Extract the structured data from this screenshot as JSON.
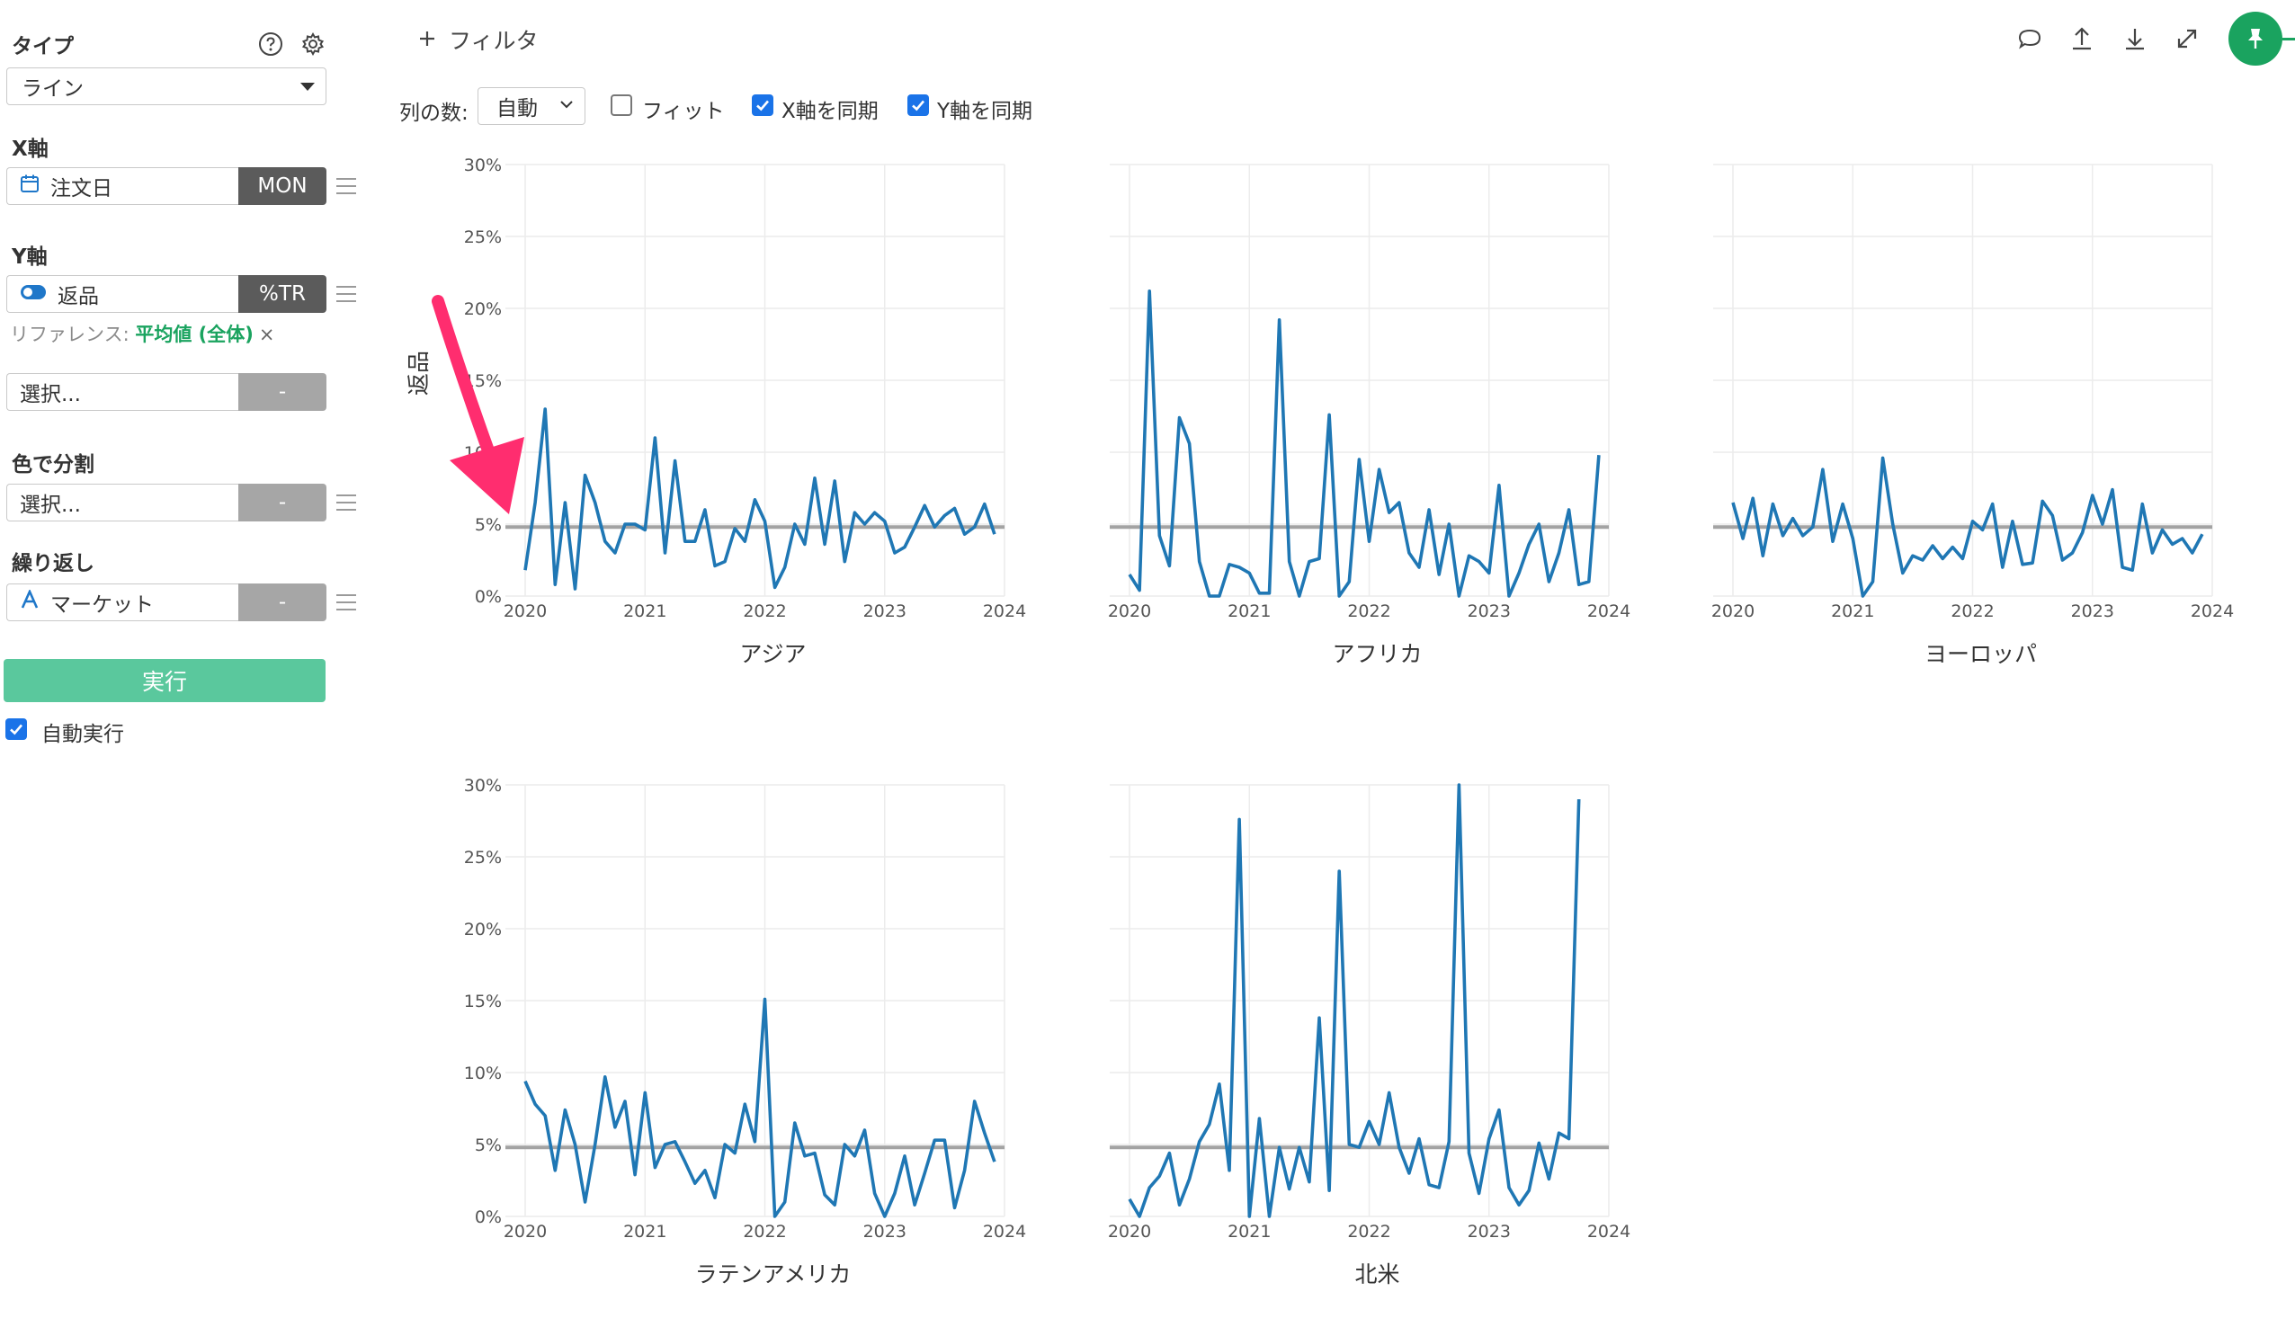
{
  "sidebar": {
    "type_label": "タイプ",
    "type_value": "ライン",
    "x_label": "X軸",
    "x_field": "注文日",
    "x_tag": "MON",
    "y_label": "Y軸",
    "y_field": "返品",
    "y_tag": "%TR",
    "ref_prefix": "リファレンス:",
    "ref_value": "平均値 (全体)",
    "ref_remove": "×",
    "y2_placeholder": "選択...",
    "y2_tag": "-",
    "color_label": "色で分割",
    "color_placeholder": "選択...",
    "color_tag": "-",
    "repeat_label": "繰り返し",
    "repeat_field": "マーケット",
    "repeat_tag": "-",
    "run_label": "実行",
    "auto_run_label": "自動実行",
    "auto_run_checked": true
  },
  "toolbar": {
    "filter_label": "フィルタ",
    "cols_label": "列の数:",
    "cols_value": "自動",
    "fit_label": "フィット",
    "fit_checked": false,
    "sync_x_label": "X軸を同期",
    "sync_x_checked": true,
    "sync_y_label": "Y軸を同期",
    "sync_y_checked": true
  },
  "icons": [
    "help-icon",
    "gear-icon",
    "calendar-icon",
    "toggle-icon",
    "text-type-icon",
    "comment-icon",
    "upload-icon",
    "download-icon",
    "expand-icon",
    "pin-icon"
  ],
  "colors": {
    "line": "#1f77b4",
    "reference": "#a3a3a3",
    "accent": "#1aa35f",
    "run": "#5ac89d",
    "annotation": "#ff2d6f"
  },
  "chart_data": {
    "type": "line",
    "ylabel": "返品",
    "ylim": [
      0,
      30
    ],
    "y_unit": "%",
    "yticks": [
      "0%",
      "5%",
      "10%",
      "15%",
      "20%",
      "25%",
      "30%"
    ],
    "xticks": [
      "2020",
      "2021",
      "2022",
      "2023",
      "2024"
    ],
    "x_start": "2020-01",
    "x_frequency": "monthly",
    "reference_line": {
      "label": "平均値 (全体)",
      "value": 4.8
    },
    "grid": true,
    "panels": [
      {
        "name": "アジア",
        "values": [
          1.8,
          6.5,
          13.0,
          0.8,
          6.5,
          0.5,
          8.4,
          6.5,
          3.8,
          3.0,
          5.0,
          5.0,
          4.6,
          11.0,
          3.0,
          9.4,
          3.8,
          3.8,
          6.0,
          2.1,
          2.4,
          4.7,
          3.8,
          6.7,
          5.2,
          0.6,
          2.0,
          5.0,
          3.6,
          8.2,
          3.6,
          8.0,
          2.4,
          5.8,
          5.0,
          5.8,
          5.2,
          3.0,
          3.4,
          4.8,
          6.3,
          4.8,
          5.6,
          6.1,
          4.3,
          4.8,
          6.4,
          4.3
        ]
      },
      {
        "name": "アフリカ",
        "values": [
          1.5,
          0.4,
          21.2,
          4.2,
          2.1,
          12.4,
          10.6,
          2.4,
          0.0,
          0.0,
          2.2,
          2.0,
          1.6,
          0.2,
          0.2,
          19.2,
          2.4,
          0.0,
          2.4,
          2.6,
          12.6,
          0.0,
          1.0,
          9.5,
          3.8,
          8.8,
          5.8,
          6.5,
          3.0,
          2.0,
          6.0,
          1.5,
          5.0,
          0.0,
          2.8,
          2.4,
          1.6,
          7.7,
          0.0,
          1.6,
          3.6,
          5.0,
          1.0,
          3.0,
          6.0,
          0.8,
          1.0,
          9.8
        ]
      },
      {
        "name": "ヨーロッパ",
        "values": [
          6.5,
          4.0,
          6.8,
          2.8,
          6.4,
          4.2,
          5.4,
          4.2,
          4.8,
          8.8,
          3.8,
          6.4,
          4.0,
          0.0,
          1.0,
          9.6,
          5.0,
          1.6,
          2.8,
          2.5,
          3.5,
          2.6,
          3.4,
          2.6,
          5.2,
          4.6,
          6.4,
          2.0,
          5.2,
          2.2,
          2.3,
          6.6,
          5.6,
          2.5,
          3.0,
          4.4,
          7.0,
          5.0,
          7.4,
          2.0,
          1.8,
          6.4,
          3.0,
          4.6,
          3.6,
          4.0,
          3.0,
          4.3
        ]
      },
      {
        "name": "ラテンアメリカ",
        "values": [
          9.4,
          7.8,
          7.0,
          3.2,
          7.4,
          5.0,
          1.0,
          5.0,
          9.7,
          6.2,
          8.0,
          2.9,
          8.6,
          3.4,
          5.0,
          5.2,
          3.8,
          2.3,
          3.2,
          1.3,
          5.0,
          4.4,
          7.8,
          5.2,
          15.1,
          0.0,
          1.0,
          6.5,
          4.2,
          4.4,
          1.5,
          0.8,
          5.0,
          4.2,
          6.0,
          1.6,
          0.0,
          1.6,
          4.2,
          0.8,
          3.0,
          5.3,
          5.3,
          0.6,
          3.2,
          8.0,
          5.8,
          3.8
        ]
      },
      {
        "name": "北米",
        "values": [
          1.2,
          0.0,
          2.0,
          2.8,
          4.4,
          0.8,
          2.6,
          5.2,
          6.4,
          9.2,
          3.2,
          27.6,
          0.0,
          6.8,
          0.0,
          4.8,
          1.9,
          4.8,
          2.4,
          13.8,
          1.8,
          24.0,
          5.0,
          4.8,
          6.6,
          5.0,
          8.6,
          4.8,
          3.0,
          5.4,
          2.2,
          2.0,
          5.2,
          30.0,
          4.4,
          1.6,
          5.4,
          7.4,
          2.0,
          0.8,
          1.8,
          5.1,
          2.6,
          5.8,
          5.4,
          29.0
        ]
      }
    ]
  }
}
